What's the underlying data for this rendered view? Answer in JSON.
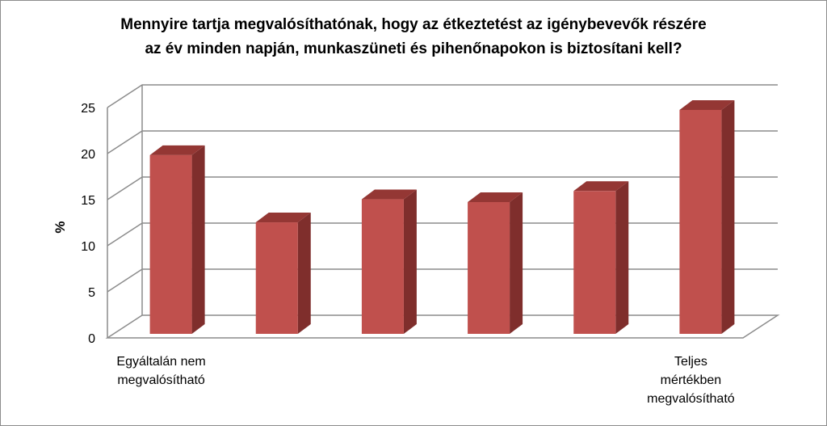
{
  "chart_data": {
    "type": "bar",
    "title_lines": [
      "Mennyire tartja megvalósíthatónak, hogy az étkeztetést az igénybevevők részére",
      "az év minden napján, munkaszüneti és pihenőnapokon is biztosítani kell?"
    ],
    "ylabel": "%",
    "ylim": [
      0,
      25
    ],
    "yticks": [
      "0",
      "5",
      "10",
      "15",
      "20",
      "25"
    ],
    "grid": true,
    "categories": [
      [
        "Egyáltalán nem",
        "megvalósítható"
      ],
      [],
      [],
      [],
      [],
      [
        "Teljes",
        "mértékben",
        "megvalósítható"
      ]
    ],
    "values": [
      19.4,
      12.1,
      14.6,
      14.3,
      15.5,
      24.3
    ],
    "colors": {
      "bar_front": "#c0504d",
      "bar_side": "#7f2e2c",
      "bar_top": "#943734",
      "grid": "#8c8c8c"
    }
  }
}
